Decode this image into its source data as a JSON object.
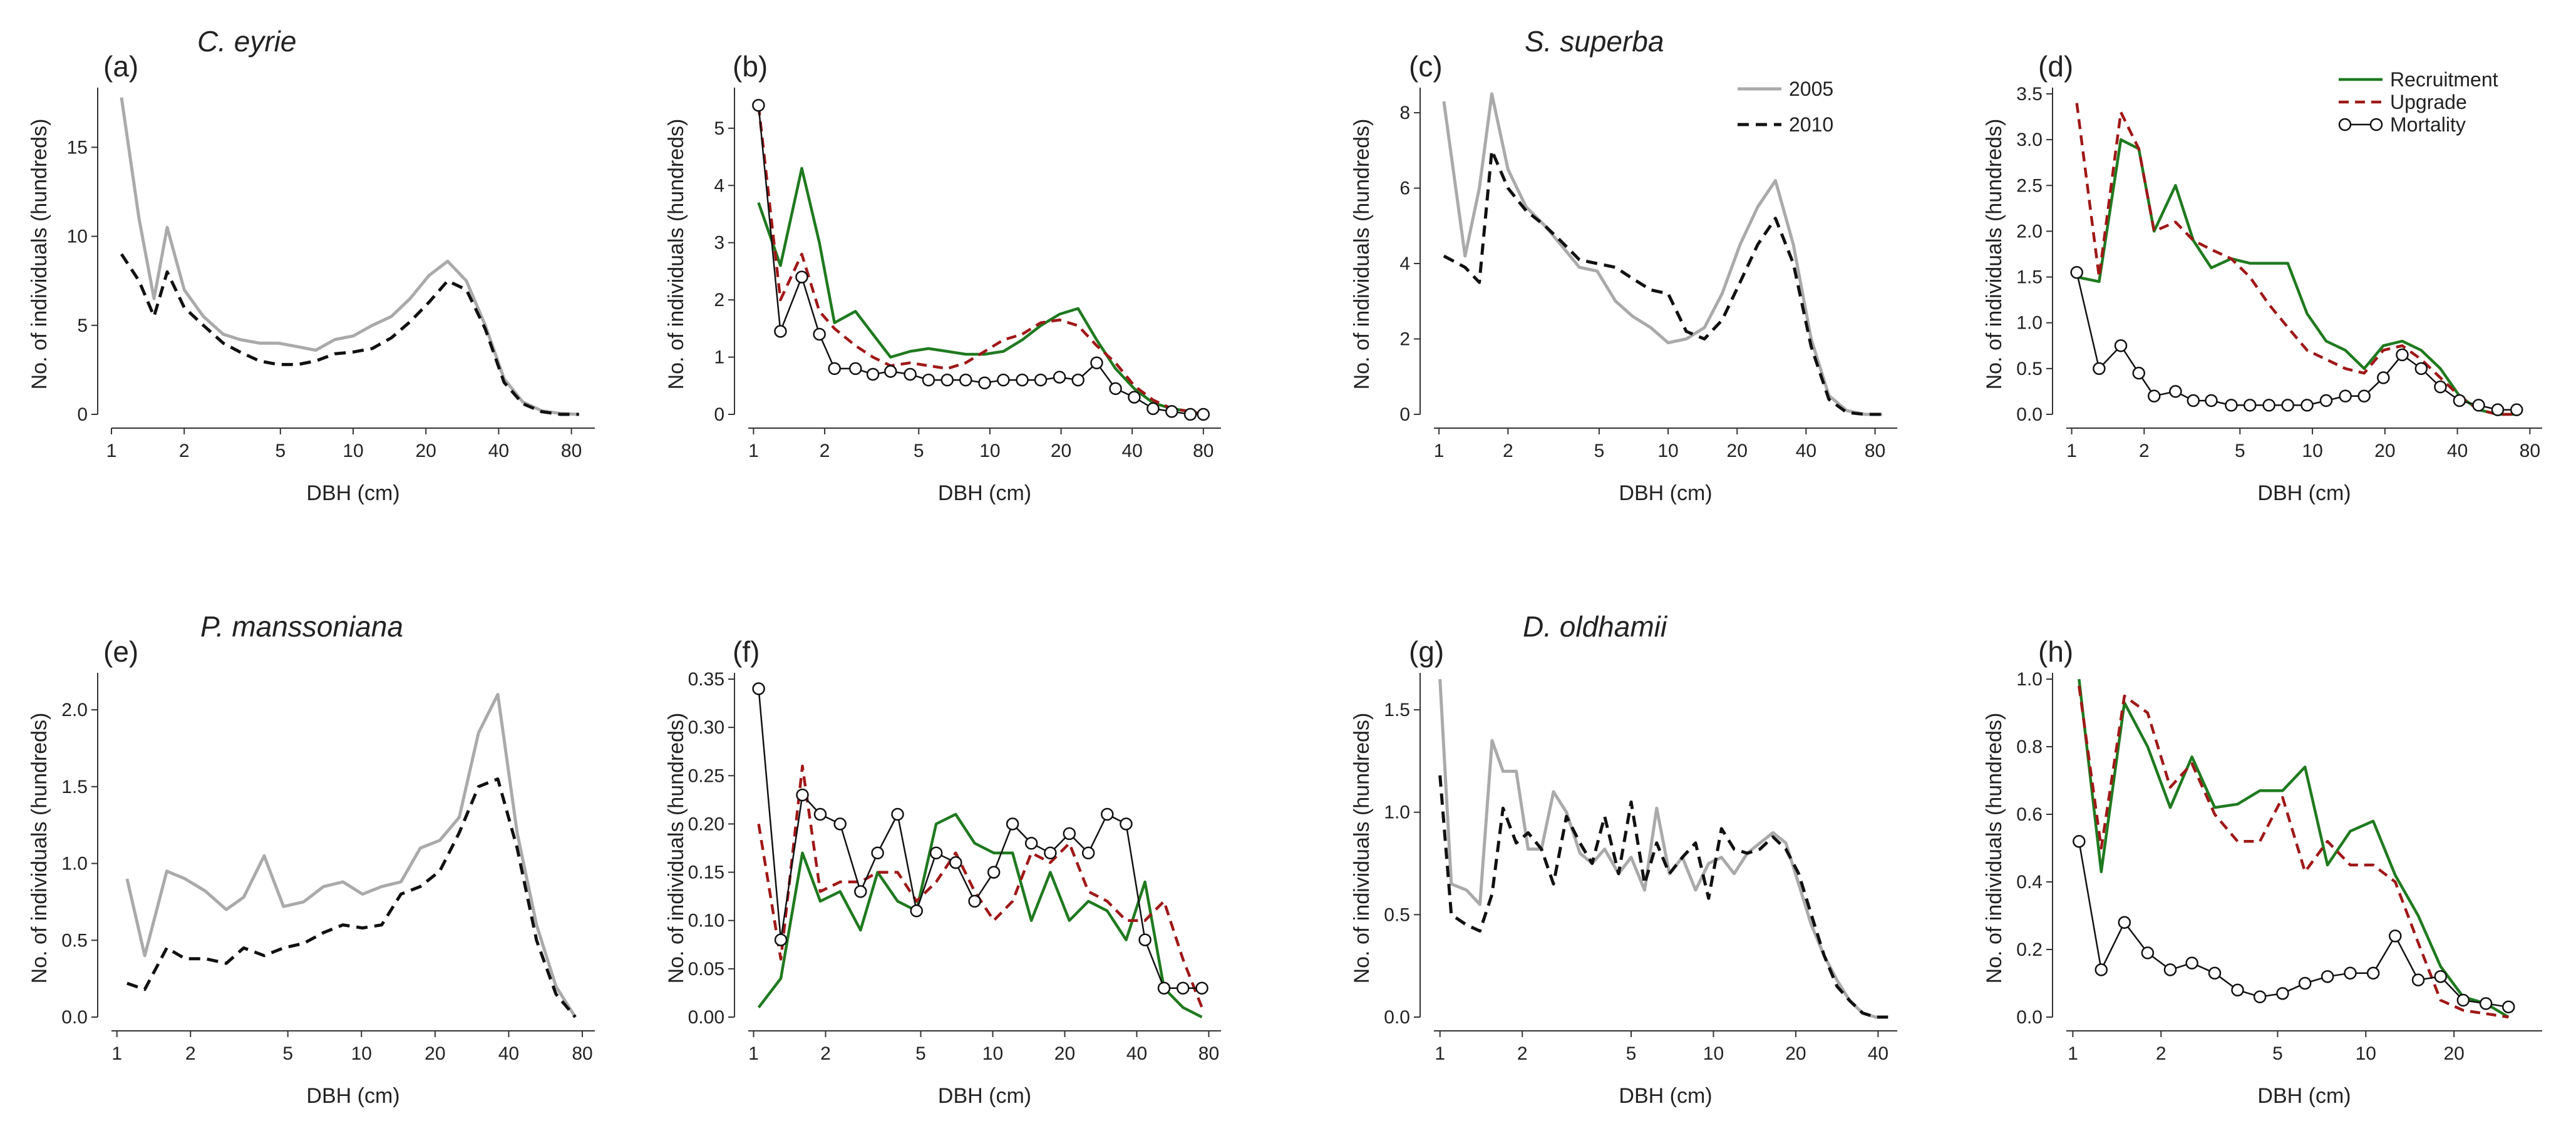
{
  "figure": {
    "y_axis_title": "No. of individuals (hundreds)",
    "x_axis_title": "DBH (cm)"
  },
  "legend_years": {
    "items": [
      {
        "name": "2005",
        "color": "#aaaaaa",
        "dash": "solid"
      },
      {
        "name": "2010",
        "color": "#111111",
        "dash": "dashed"
      }
    ]
  },
  "legend_dynamics": {
    "items": [
      {
        "name": "Recruitment",
        "color": "#1f7a1f",
        "dash": "solid"
      },
      {
        "name": "Upgrade",
        "color": "#a01818",
        "dash": "dashed"
      },
      {
        "name": "Mortality",
        "color": "#111111",
        "dash": "circles"
      }
    ]
  },
  "chart_data": [
    {
      "id": "a",
      "type": "line",
      "panel_label": "(a)",
      "title": "C. eyrie",
      "xscale": "log",
      "xlim": [
        1,
        100
      ],
      "ylim": [
        0,
        18
      ],
      "xticks": [
        1,
        2,
        5,
        10,
        20,
        40,
        80
      ],
      "yticks": [
        0,
        5,
        10,
        15
      ],
      "xlabel": "DBH (cm)",
      "ylabel": "No. of individuals (hundreds)",
      "x": [
        1.1,
        1.3,
        1.5,
        1.7,
        2.0,
        2.4,
        2.9,
        3.4,
        4.1,
        4.9,
        5.9,
        7.0,
        8.4,
        10.0,
        12.0,
        14.4,
        17.2,
        20.6,
        24.6,
        29.4,
        35.2,
        42.1,
        50.3,
        60.2,
        72.0,
        86.0
      ],
      "series": [
        {
          "name": "2005",
          "values": [
            17.8,
            11.0,
            6.5,
            10.5,
            7.0,
            5.5,
            4.5,
            4.2,
            4.0,
            4.0,
            3.8,
            3.6,
            4.2,
            4.4,
            5.0,
            5.5,
            6.5,
            7.8,
            8.6,
            7.5,
            5.0,
            2.0,
            0.7,
            0.2,
            0.05,
            0.0
          ]
        },
        {
          "name": "2010",
          "values": [
            9.0,
            7.5,
            5.5,
            8.0,
            6.0,
            5.0,
            4.0,
            3.5,
            3.0,
            2.8,
            2.8,
            3.0,
            3.4,
            3.5,
            3.7,
            4.3,
            5.2,
            6.3,
            7.5,
            7.0,
            4.8,
            1.8,
            0.6,
            0.15,
            0.0,
            0.0
          ]
        }
      ]
    },
    {
      "id": "b",
      "type": "line",
      "panel_label": "(b)",
      "title": "",
      "xscale": "log",
      "xlim": [
        0.95,
        95
      ],
      "ylim": [
        0,
        5.6
      ],
      "xticks": [
        1,
        2,
        5,
        10,
        20,
        40,
        80
      ],
      "yticks": [
        0,
        1,
        2,
        3,
        4,
        5
      ],
      "xlabel": "DBH (cm)",
      "ylabel": "No. of individuals (hundreds)",
      "x": [
        1.05,
        1.3,
        1.6,
        1.9,
        2.2,
        2.7,
        3.2,
        3.8,
        4.6,
        5.5,
        6.6,
        7.9,
        9.5,
        11.4,
        13.7,
        16.4,
        19.7,
        23.6,
        28.3,
        34.0,
        40.8,
        49.0,
        58.8,
        70.5,
        80.0
      ],
      "series": [
        {
          "name": "Recruitment",
          "values": [
            3.7,
            2.6,
            4.3,
            3.0,
            1.6,
            1.8,
            1.4,
            1.0,
            1.1,
            1.15,
            1.1,
            1.05,
            1.05,
            1.1,
            1.3,
            1.55,
            1.75,
            1.85,
            1.3,
            0.8,
            0.45,
            0.2,
            0.1,
            0.05,
            0.0
          ]
        },
        {
          "name": "Upgrade",
          "values": [
            5.4,
            2.0,
            2.8,
            1.8,
            1.5,
            1.2,
            1.0,
            0.85,
            0.9,
            0.85,
            0.8,
            0.9,
            1.1,
            1.3,
            1.4,
            1.6,
            1.65,
            1.55,
            1.2,
            0.9,
            0.5,
            0.25,
            0.1,
            0.05,
            0.0
          ]
        },
        {
          "name": "Mortality",
          "values": [
            5.4,
            1.45,
            2.4,
            1.4,
            0.8,
            0.8,
            0.7,
            0.75,
            0.7,
            0.6,
            0.6,
            0.6,
            0.55,
            0.6,
            0.6,
            0.6,
            0.65,
            0.6,
            0.9,
            0.45,
            0.3,
            0.1,
            0.05,
            0.0,
            0.0
          ]
        }
      ]
    },
    {
      "id": "c",
      "type": "line",
      "panel_label": "(c)",
      "title": "S. superba",
      "xscale": "log",
      "xlim": [
        0.95,
        100
      ],
      "ylim": [
        0,
        8.5
      ],
      "xticks": [
        1,
        2,
        5,
        10,
        20,
        40,
        80
      ],
      "yticks": [
        0,
        2,
        4,
        6,
        8
      ],
      "xlabel": "DBH (cm)",
      "ylabel": "No. of individuals (hundreds)",
      "x": [
        1.05,
        1.3,
        1.5,
        1.7,
        2.0,
        2.4,
        2.9,
        3.4,
        4.1,
        4.9,
        5.9,
        7.0,
        8.4,
        10.0,
        12.0,
        14.4,
        17.2,
        20.6,
        24.6,
        29.4,
        35.2,
        42.1,
        50.3,
        60.2,
        72.0,
        86.0
      ],
      "series": [
        {
          "name": "2005",
          "values": [
            8.3,
            4.2,
            6.0,
            8.5,
            6.5,
            5.5,
            5.0,
            4.5,
            3.9,
            3.8,
            3.0,
            2.6,
            2.3,
            1.9,
            2.0,
            2.3,
            3.2,
            4.5,
            5.5,
            6.2,
            4.5,
            2.0,
            0.5,
            0.1,
            0.0,
            0.0
          ]
        },
        {
          "name": "2010",
          "values": [
            4.2,
            3.9,
            3.5,
            7.0,
            6.0,
            5.4,
            5.0,
            4.6,
            4.1,
            4.0,
            3.9,
            3.6,
            3.3,
            3.2,
            2.2,
            2.0,
            2.5,
            3.5,
            4.5,
            5.2,
            4.0,
            1.8,
            0.4,
            0.05,
            0.0,
            0.0
          ]
        }
      ]
    },
    {
      "id": "d",
      "type": "line",
      "panel_label": "(d)",
      "title": "",
      "xscale": "log",
      "xlim": [
        0.95,
        90
      ],
      "ylim": [
        0,
        3.5
      ],
      "xticks": [
        1,
        2,
        5,
        10,
        20,
        40,
        80
      ],
      "yticks": [
        0,
        0.5,
        1.0,
        1.5,
        2.0,
        2.5,
        3.0,
        3.5
      ],
      "yformat": 1,
      "xlabel": "DBH (cm)",
      "ylabel": "No. of individuals (hundreds)",
      "x": [
        1.05,
        1.3,
        1.6,
        1.9,
        2.2,
        2.7,
        3.2,
        3.8,
        4.6,
        5.5,
        6.6,
        7.9,
        9.5,
        11.4,
        13.7,
        16.4,
        19.7,
        23.6,
        28.3,
        34.0,
        40.8,
        49.0,
        58.8,
        70.5
      ],
      "series": [
        {
          "name": "Recruitment",
          "values": [
            1.5,
            1.45,
            3.0,
            2.9,
            2.0,
            2.5,
            1.9,
            1.6,
            1.7,
            1.65,
            1.65,
            1.65,
            1.1,
            0.8,
            0.7,
            0.5,
            0.75,
            0.8,
            0.7,
            0.5,
            0.2,
            0.05,
            0.0,
            0.0
          ]
        },
        {
          "name": "Upgrade",
          "values": [
            3.4,
            1.5,
            3.3,
            2.9,
            2.0,
            2.1,
            1.9,
            1.8,
            1.7,
            1.5,
            1.2,
            0.95,
            0.7,
            0.6,
            0.5,
            0.45,
            0.7,
            0.75,
            0.6,
            0.4,
            0.2,
            0.05,
            0.0,
            0.0
          ]
        },
        {
          "name": "Mortality",
          "values": [
            1.55,
            0.5,
            0.75,
            0.45,
            0.2,
            0.25,
            0.15,
            0.15,
            0.1,
            0.1,
            0.1,
            0.1,
            0.1,
            0.15,
            0.2,
            0.2,
            0.4,
            0.65,
            0.5,
            0.3,
            0.15,
            0.1,
            0.05,
            0.05
          ]
        }
      ]
    },
    {
      "id": "e",
      "type": "line",
      "panel_label": "(e)",
      "title": "P. manssoniana",
      "xscale": "log",
      "xlim": [
        0.95,
        90
      ],
      "ylim": [
        0,
        2.2
      ],
      "xticks": [
        1,
        2,
        5,
        10,
        20,
        40,
        80
      ],
      "yticks": [
        0,
        0.5,
        1.0,
        1.5,
        2.0
      ],
      "yformat": 1,
      "xlabel": "DBH (cm)",
      "ylabel": "No. of individuals (hundreds)",
      "x": [
        1.1,
        1.3,
        1.6,
        1.9,
        2.3,
        2.8,
        3.3,
        4.0,
        4.8,
        5.8,
        7.0,
        8.4,
        10.1,
        12.1,
        14.5,
        17.4,
        20.9,
        25.1,
        30.1,
        36.1,
        43.3,
        52.0,
        62.4,
        74.9
      ],
      "series": [
        {
          "name": "2005",
          "values": [
            0.9,
            0.4,
            0.95,
            0.9,
            0.82,
            0.7,
            0.78,
            1.05,
            0.72,
            0.75,
            0.85,
            0.88,
            0.8,
            0.85,
            0.88,
            1.1,
            1.15,
            1.3,
            1.85,
            2.1,
            1.2,
            0.6,
            0.2,
            0.0
          ]
        },
        {
          "name": "2010",
          "values": [
            0.22,
            0.18,
            0.45,
            0.38,
            0.38,
            0.35,
            0.45,
            0.4,
            0.45,
            0.48,
            0.55,
            0.6,
            0.58,
            0.6,
            0.8,
            0.85,
            0.95,
            1.2,
            1.5,
            1.55,
            1.1,
            0.5,
            0.15,
            0.0
          ]
        }
      ]
    },
    {
      "id": "f",
      "type": "line",
      "panel_label": "(f)",
      "title": "",
      "xscale": "log",
      "xlim": [
        0.95,
        90
      ],
      "ylim": [
        0,
        0.35
      ],
      "xticks": [
        1,
        2,
        5,
        10,
        20,
        40,
        80
      ],
      "yticks": [
        0,
        0.05,
        0.1,
        0.15,
        0.2,
        0.25,
        0.3,
        0.35
      ],
      "yformat": 2,
      "xlabel": "DBH (cm)",
      "ylabel": "No. of individuals (hundreds)",
      "x": [
        1.05,
        1.3,
        1.6,
        1.9,
        2.3,
        2.8,
        3.3,
        4.0,
        4.8,
        5.8,
        7.0,
        8.4,
        10.1,
        12.1,
        14.5,
        17.4,
        20.9,
        25.1,
        30.1,
        36.1,
        43.3,
        52.0,
        62.4,
        74.9
      ],
      "series": [
        {
          "name": "Recruitment",
          "values": [
            0.01,
            0.04,
            0.17,
            0.12,
            0.13,
            0.09,
            0.15,
            0.12,
            0.11,
            0.2,
            0.21,
            0.18,
            0.17,
            0.17,
            0.1,
            0.15,
            0.1,
            0.12,
            0.11,
            0.08,
            0.14,
            0.03,
            0.01,
            0.0
          ]
        },
        {
          "name": "Upgrade",
          "values": [
            0.2,
            0.06,
            0.26,
            0.13,
            0.14,
            0.14,
            0.15,
            0.15,
            0.12,
            0.14,
            0.17,
            0.13,
            0.1,
            0.12,
            0.17,
            0.16,
            0.18,
            0.13,
            0.12,
            0.1,
            0.1,
            0.12,
            0.06,
            0.01
          ]
        },
        {
          "name": "Mortality",
          "values": [
            0.34,
            0.08,
            0.23,
            0.21,
            0.2,
            0.13,
            0.17,
            0.21,
            0.11,
            0.17,
            0.16,
            0.12,
            0.15,
            0.2,
            0.18,
            0.17,
            0.19,
            0.17,
            0.21,
            0.2,
            0.08,
            0.03,
            0.03,
            0.03
          ]
        }
      ]
    },
    {
      "id": "g",
      "type": "line",
      "panel_label": "(g)",
      "title": "D. oldhamii",
      "xscale": "log",
      "xlim": [
        0.95,
        47
      ],
      "ylim": [
        0,
        1.65
      ],
      "xticks": [
        1,
        2,
        5,
        10,
        20,
        40
      ],
      "yticks": [
        0,
        0.5,
        1.0,
        1.5
      ],
      "yformat": 1,
      "xlabel": "DBH (cm)",
      "ylabel": "No. of individuals (hundreds)",
      "x": [
        1.0,
        1.1,
        1.25,
        1.4,
        1.55,
        1.7,
        1.9,
        2.1,
        2.35,
        2.6,
        2.9,
        3.25,
        3.6,
        4.0,
        4.5,
        5.0,
        5.6,
        6.2,
        6.9,
        7.7,
        8.6,
        9.6,
        10.7,
        11.9,
        13.3,
        14.8,
        16.5,
        18.4,
        20.5,
        22.8,
        25.4,
        28.3,
        31.5,
        35.1,
        39.1,
        43.5
      ],
      "series": [
        {
          "name": "2005",
          "values": [
            1.65,
            0.65,
            0.62,
            0.55,
            1.35,
            1.2,
            1.2,
            0.82,
            0.82,
            1.1,
            1.0,
            0.8,
            0.75,
            0.82,
            0.7,
            0.78,
            0.62,
            1.02,
            0.7,
            0.78,
            0.62,
            0.75,
            0.78,
            0.7,
            0.8,
            0.85,
            0.9,
            0.85,
            0.65,
            0.45,
            0.3,
            0.18,
            0.08,
            0.02,
            0.0,
            0.0
          ]
        },
        {
          "name": "2010",
          "values": [
            1.18,
            0.5,
            0.45,
            0.42,
            0.6,
            1.02,
            0.85,
            0.9,
            0.82,
            0.65,
            0.98,
            0.85,
            0.75,
            0.98,
            0.7,
            1.05,
            0.65,
            0.85,
            0.7,
            0.78,
            0.85,
            0.58,
            0.92,
            0.82,
            0.8,
            0.82,
            0.88,
            0.82,
            0.7,
            0.5,
            0.3,
            0.15,
            0.08,
            0.02,
            0.0,
            0.0
          ]
        }
      ]
    },
    {
      "id": "h",
      "type": "line",
      "panel_label": "(h)",
      "title": "",
      "xscale": "log",
      "xlim": [
        0.95,
        40
      ],
      "ylim": [
        0,
        1.0
      ],
      "xticks": [
        1,
        2,
        5,
        10,
        20
      ],
      "yticks": [
        0,
        0.2,
        0.4,
        0.6,
        0.8,
        1.0
      ],
      "yformat": 1,
      "xlabel": "DBH (cm)",
      "ylabel": "No. of individuals (hundreds)",
      "x": [
        1.05,
        1.25,
        1.5,
        1.8,
        2.15,
        2.55,
        3.05,
        3.65,
        4.35,
        5.2,
        6.2,
        7.4,
        8.85,
        10.6,
        12.6,
        15.1,
        18.0,
        21.5,
        25.7,
        30.7
      ],
      "series": [
        {
          "name": "Recruitment",
          "values": [
            1.0,
            0.43,
            0.93,
            0.8,
            0.62,
            0.77,
            0.62,
            0.63,
            0.67,
            0.67,
            0.74,
            0.45,
            0.55,
            0.58,
            0.42,
            0.3,
            0.15,
            0.06,
            0.04,
            0.0
          ]
        },
        {
          "name": "Upgrade",
          "values": [
            0.98,
            0.5,
            0.95,
            0.9,
            0.68,
            0.75,
            0.6,
            0.52,
            0.52,
            0.65,
            0.43,
            0.52,
            0.45,
            0.45,
            0.4,
            0.22,
            0.05,
            0.02,
            0.01,
            0.0
          ]
        },
        {
          "name": "Mortality",
          "values": [
            0.52,
            0.14,
            0.28,
            0.19,
            0.14,
            0.16,
            0.13,
            0.08,
            0.06,
            0.07,
            0.1,
            0.12,
            0.13,
            0.13,
            0.24,
            0.11,
            0.12,
            0.05,
            0.04,
            0.03
          ]
        }
      ]
    }
  ]
}
